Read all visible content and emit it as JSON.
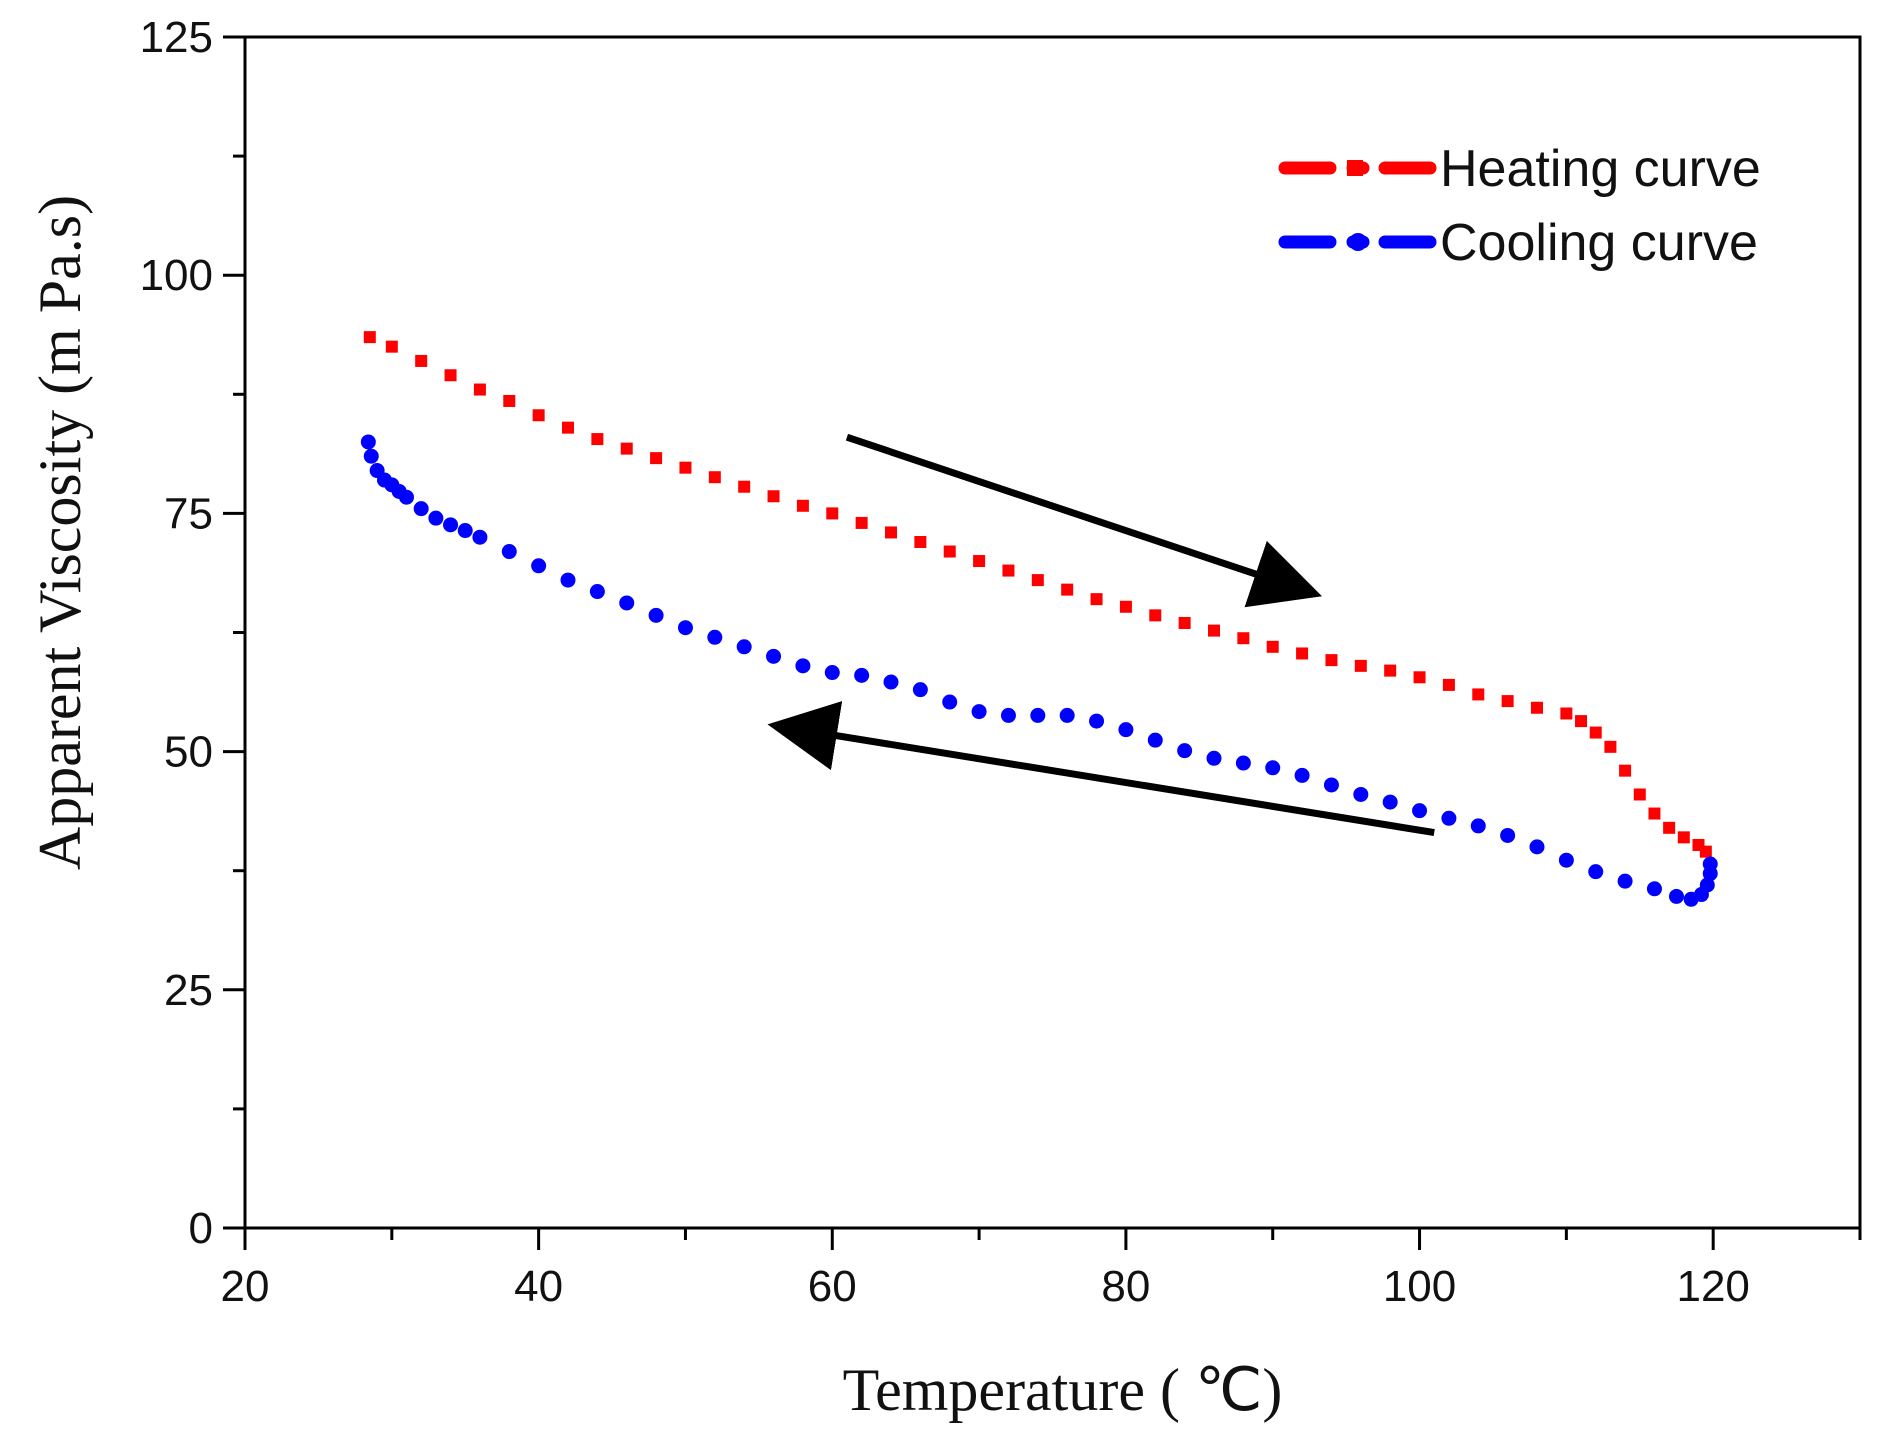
{
  "chart_data": {
    "type": "scatter",
    "xlabel": "Temperature ( ℃)",
    "ylabel": "Apparent Viscosity (m Pa.s)",
    "xlim": [
      20,
      130
    ],
    "ylim": [
      0,
      125
    ],
    "x_ticks": [
      20,
      40,
      60,
      80,
      100,
      120
    ],
    "y_ticks": [
      0,
      25,
      50,
      75,
      100,
      125
    ],
    "grid": false,
    "legend_position": "top-right",
    "series": [
      {
        "name": "Heating curve",
        "color": "#ff0000",
        "marker": "square",
        "points": [
          [
            28.5,
            93.5
          ],
          [
            30,
            92.5
          ],
          [
            32,
            91
          ],
          [
            34,
            89.5
          ],
          [
            36,
            88
          ],
          [
            38,
            86.8
          ],
          [
            40,
            85.3
          ],
          [
            42,
            84
          ],
          [
            44,
            82.8
          ],
          [
            46,
            81.8
          ],
          [
            48,
            80.8
          ],
          [
            50,
            79.8
          ],
          [
            52,
            78.8
          ],
          [
            54,
            77.8
          ],
          [
            56,
            76.8
          ],
          [
            58,
            75.8
          ],
          [
            60,
            75
          ],
          [
            62,
            74
          ],
          [
            64,
            73
          ],
          [
            66,
            72
          ],
          [
            68,
            71
          ],
          [
            70,
            70
          ],
          [
            72,
            69
          ],
          [
            74,
            68
          ],
          [
            76,
            67
          ],
          [
            78,
            66
          ],
          [
            80,
            65.2
          ],
          [
            82,
            64.3
          ],
          [
            84,
            63.5
          ],
          [
            86,
            62.7
          ],
          [
            88,
            61.9
          ],
          [
            90,
            61
          ],
          [
            92,
            60.3
          ],
          [
            94,
            59.6
          ],
          [
            96,
            59
          ],
          [
            98,
            58.5
          ],
          [
            100,
            57.8
          ],
          [
            102,
            57
          ],
          [
            104,
            56
          ],
          [
            106,
            55.3
          ],
          [
            108,
            54.6
          ],
          [
            110,
            54
          ],
          [
            111,
            53.2
          ],
          [
            112,
            52
          ],
          [
            113,
            50.5
          ],
          [
            114,
            48
          ],
          [
            115,
            45.5
          ],
          [
            116,
            43.5
          ],
          [
            117,
            42
          ],
          [
            118,
            41
          ],
          [
            119,
            40.2
          ],
          [
            119.5,
            39.5
          ]
        ]
      },
      {
        "name": "Cooling curve",
        "color": "#0000ff",
        "marker": "circle",
        "points": [
          [
            28.4,
            82.5
          ],
          [
            28.6,
            81
          ],
          [
            29,
            79.5
          ],
          [
            29.5,
            78.5
          ],
          [
            30,
            78
          ],
          [
            30.5,
            77.3
          ],
          [
            31,
            76.7
          ],
          [
            32,
            75.5
          ],
          [
            33,
            74.5
          ],
          [
            34,
            73.8
          ],
          [
            35,
            73.2
          ],
          [
            36,
            72.5
          ],
          [
            38,
            71
          ],
          [
            40,
            69.5
          ],
          [
            42,
            68
          ],
          [
            44,
            66.8
          ],
          [
            46,
            65.6
          ],
          [
            48,
            64.3
          ],
          [
            50,
            63
          ],
          [
            52,
            62
          ],
          [
            54,
            61
          ],
          [
            56,
            60
          ],
          [
            58,
            59
          ],
          [
            60,
            58.3
          ],
          [
            62,
            58
          ],
          [
            64,
            57.3
          ],
          [
            66,
            56.5
          ],
          [
            68,
            55.2
          ],
          [
            70,
            54.2
          ],
          [
            72,
            53.8
          ],
          [
            74,
            53.8
          ],
          [
            76,
            53.8
          ],
          [
            78,
            53.2
          ],
          [
            80,
            52.3
          ],
          [
            82,
            51.2
          ],
          [
            84,
            50.1
          ],
          [
            86,
            49.3
          ],
          [
            88,
            48.8
          ],
          [
            90,
            48.3
          ],
          [
            92,
            47.5
          ],
          [
            94,
            46.5
          ],
          [
            96,
            45.5
          ],
          [
            98,
            44.7
          ],
          [
            100,
            43.8
          ],
          [
            102,
            43
          ],
          [
            104,
            42.2
          ],
          [
            106,
            41.2
          ],
          [
            108,
            40
          ],
          [
            110,
            38.6
          ],
          [
            112,
            37.4
          ],
          [
            114,
            36.4
          ],
          [
            116,
            35.6
          ],
          [
            117.5,
            34.8
          ],
          [
            118.5,
            34.5
          ],
          [
            119.2,
            35
          ],
          [
            119.6,
            36
          ],
          [
            119.8,
            37.2
          ],
          [
            119.8,
            38.2
          ]
        ]
      }
    ],
    "annotations": [
      {
        "type": "arrow",
        "from": [
          61,
          83
        ],
        "to": [
          92,
          67
        ]
      },
      {
        "type": "arrow",
        "from": [
          101,
          41.5
        ],
        "to": [
          57,
          52.5
        ]
      }
    ]
  }
}
